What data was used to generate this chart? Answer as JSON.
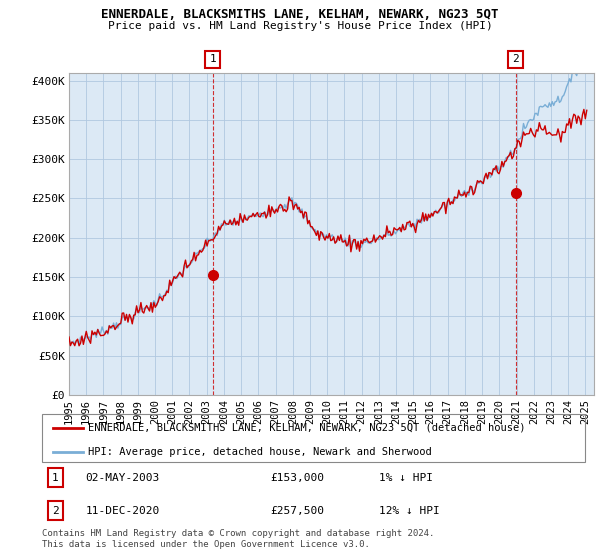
{
  "title": "ENNERDALE, BLACKSMITHS LANE, KELHAM, NEWARK, NG23 5QT",
  "subtitle": "Price paid vs. HM Land Registry's House Price Index (HPI)",
  "ylabel_ticks": [
    "£0",
    "£50K",
    "£100K",
    "£150K",
    "£200K",
    "£250K",
    "£300K",
    "£350K",
    "£400K"
  ],
  "ytick_values": [
    0,
    50000,
    100000,
    150000,
    200000,
    250000,
    300000,
    350000,
    400000
  ],
  "ylim": [
    0,
    410000
  ],
  "xlim_start": 1995.0,
  "xlim_end": 2025.5,
  "hpi_color": "#7aaed6",
  "price_color": "#cc0000",
  "dot_color": "#cc0000",
  "background_color": "#ffffff",
  "chart_bg_color": "#dce9f5",
  "grid_color": "#b0c8e0",
  "legend_label_price": "ENNERDALE, BLACKSMITHS LANE, KELHAM, NEWARK, NG23 5QT (detached house)",
  "legend_label_hpi": "HPI: Average price, detached house, Newark and Sherwood",
  "annotation1": {
    "num": "1",
    "date": "02-MAY-2003",
    "price": "£153,000",
    "note": "1% ↓ HPI"
  },
  "annotation2": {
    "num": "2",
    "date": "11-DEC-2020",
    "price": "£257,500",
    "note": "12% ↓ HPI"
  },
  "copyright": "Contains HM Land Registry data © Crown copyright and database right 2024.\nThis data is licensed under the Open Government Licence v3.0.",
  "sale1_x": 2003.35,
  "sale1_y": 153000,
  "sale2_x": 2020.95,
  "sale2_y": 257500,
  "xticks": [
    1995,
    1996,
    1997,
    1998,
    1999,
    2000,
    2001,
    2002,
    2003,
    2004,
    2005,
    2006,
    2007,
    2008,
    2009,
    2010,
    2011,
    2012,
    2013,
    2014,
    2015,
    2016,
    2017,
    2018,
    2019,
    2020,
    2021,
    2022,
    2023,
    2024,
    2025
  ]
}
